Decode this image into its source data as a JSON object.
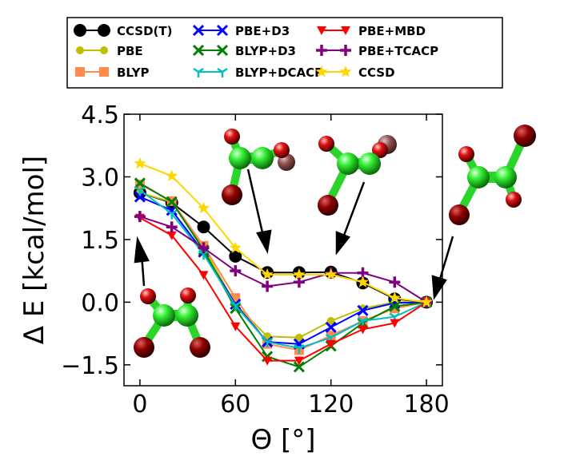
{
  "chart_data": {
    "type": "line",
    "title": "",
    "xlabel": "Θ [°]",
    "ylabel": "Δ E [kcal/mol]",
    "xlim": [
      -10,
      190
    ],
    "ylim": [
      -2.0,
      4.5
    ],
    "xticks": [
      0,
      60,
      120,
      180
    ],
    "xtick_labels": [
      "0",
      "60",
      "120",
      "180"
    ],
    "yticks": [
      -1.5,
      0.0,
      1.5,
      3.0,
      4.5
    ],
    "ytick_labels": [
      "−1.5",
      "0.0",
      "1.5",
      "3.0",
      "4.5"
    ],
    "x": [
      0,
      20,
      40,
      60,
      80,
      100,
      120,
      140,
      160,
      180
    ],
    "legend_position": "top, outside plot (3 columns)",
    "series": [
      {
        "name": "CCSD(T)",
        "color": "#000000",
        "marker": "circle",
        "values": [
          2.62,
          2.38,
          1.8,
          1.1,
          0.71,
          0.71,
          0.72,
          0.46,
          0.08,
          0.0
        ]
      },
      {
        "name": "PBE",
        "color": "#bfbf00",
        "marker": "small-circle",
        "values": [
          2.62,
          2.4,
          1.3,
          -0.05,
          -0.82,
          -0.85,
          -0.45,
          -0.15,
          0.0,
          0.0
        ]
      },
      {
        "name": "BLYP",
        "color": "#ff8c4c",
        "marker": "square",
        "values": [
          2.82,
          2.42,
          1.35,
          0.1,
          -1.0,
          -1.15,
          -0.8,
          -0.45,
          -0.15,
          0.0
        ]
      },
      {
        "name": "PBE+D3",
        "color": "#0000ff",
        "marker": "x",
        "values": [
          2.52,
          2.2,
          1.2,
          -0.05,
          -0.95,
          -1.0,
          -0.6,
          -0.2,
          -0.02,
          0.0
        ]
      },
      {
        "name": "BLYP+D3",
        "color": "#008000",
        "marker": "x",
        "values": [
          2.85,
          2.4,
          1.25,
          -0.15,
          -1.3,
          -1.55,
          -1.05,
          -0.5,
          -0.1,
          0.0
        ]
      },
      {
        "name": "BLYP+DCACP",
        "color": "#00bfbf",
        "marker": "tri",
        "values": [
          2.68,
          2.12,
          1.15,
          -0.08,
          -0.95,
          -1.1,
          -0.85,
          -0.45,
          -0.35,
          0.0
        ]
      },
      {
        "name": "PBE+MBD",
        "color": "#ff0000",
        "marker": "triangle-down",
        "values": [
          2.02,
          1.6,
          0.65,
          -0.58,
          -1.4,
          -1.4,
          -1.0,
          -0.65,
          -0.5,
          0.0
        ]
      },
      {
        "name": "PBE+TCACP",
        "color": "#800080",
        "marker": "plus",
        "values": [
          2.05,
          1.8,
          1.3,
          0.75,
          0.38,
          0.48,
          0.7,
          0.7,
          0.48,
          0.0
        ]
      },
      {
        "name": "CCSD",
        "color": "#ffd700",
        "marker": "star",
        "values": [
          3.32,
          3.02,
          2.25,
          1.3,
          0.66,
          0.66,
          0.66,
          0.48,
          0.1,
          0.0
        ]
      }
    ]
  }
}
